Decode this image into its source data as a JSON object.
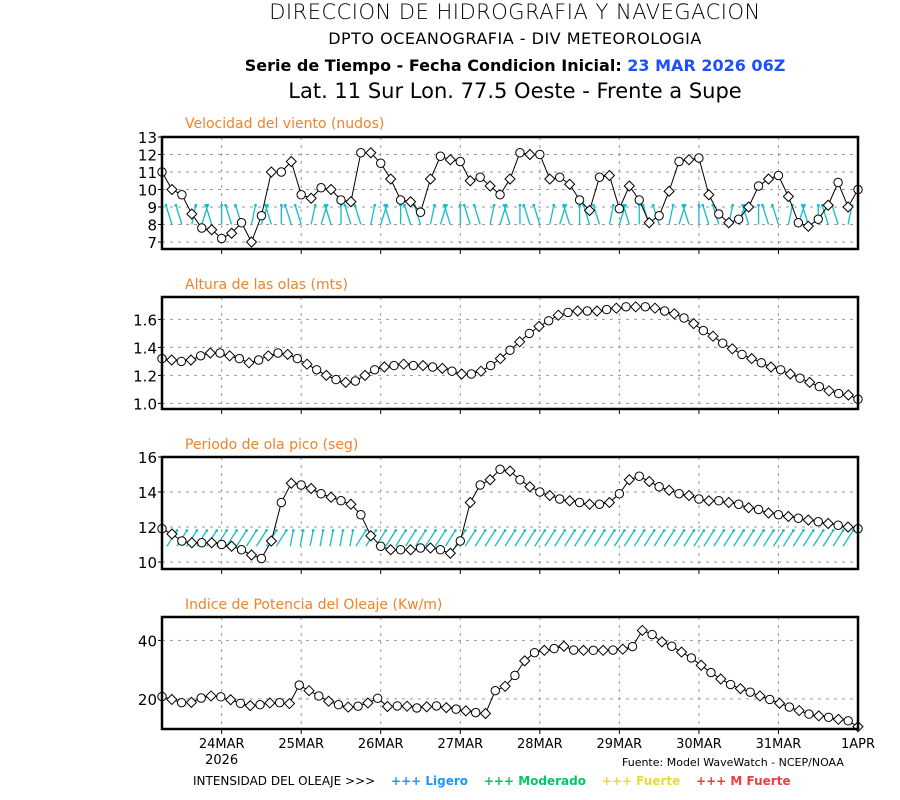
{
  "header": {
    "title": "DIRECCION DE HIDROGRAFIA Y NAVEGACION",
    "subtitle": "DPTO OCEANOGRAFIA - DIV METEOROLOGIA",
    "series_label": "Serie de Tiempo - Fecha Condicion Inicial:",
    "init_date": "23 MAR 2026 06Z",
    "location": "Lat. 11 Sur  Lon. 77.5 Oeste - Frente a Supe"
  },
  "footer": {
    "source": "Fuente: Model WaveWatch - NCEP/NOAA",
    "legend_label": "INTENSIDAD DEL OLEAJE >>>",
    "legend_items": [
      {
        "label": "+++ Ligero",
        "color": "#1e96ff"
      },
      {
        "label": "+++ Moderado",
        "color": "#00c864"
      },
      {
        "label": "+++ Fuerte",
        "color": "#e6dc32"
      },
      {
        "label": "+++ M Fuerte",
        "color": "#f03c3c"
      }
    ]
  },
  "colors": {
    "panel_title": "#f08228",
    "arrow": "#14bec8",
    "line": "#000000",
    "accent_blue": "#1e50ff"
  },
  "chart_data": [
    {
      "type": "line",
      "title": "Velocidad del viento (nudos)",
      "ylim": [
        6.6,
        13
      ],
      "yticks": [
        7,
        8,
        9,
        10,
        11,
        12,
        13
      ],
      "time_step_hours": 3,
      "start": "23 MAR 2026 06Z",
      "xtick_labels": [
        "24MAR",
        "25MAR",
        "26MAR",
        "27MAR",
        "28MAR",
        "29MAR",
        "30MAR",
        "31MAR",
        "1APR"
      ],
      "xtick_sublabel": "2026",
      "grid": true,
      "direction_arrows": true,
      "values": [
        11.0,
        10.0,
        9.7,
        8.6,
        7.8,
        7.7,
        7.2,
        7.5,
        8.1,
        7.0,
        8.5,
        11.0,
        11.0,
        11.6,
        9.7,
        9.5,
        10.1,
        10.0,
        9.4,
        9.3,
        12.1,
        12.1,
        11.5,
        10.6,
        9.4,
        9.3,
        8.7,
        10.6,
        11.9,
        11.7,
        11.6,
        10.5,
        10.7,
        10.2,
        9.7,
        10.6,
        12.1,
        12.0,
        12.0,
        10.6,
        10.7,
        10.3,
        9.4,
        8.8,
        10.7,
        10.8,
        8.9,
        10.2,
        9.4,
        8.1,
        8.5,
        9.9,
        11.6,
        11.7,
        11.8,
        9.7,
        8.6,
        8.1,
        8.3,
        9.0,
        10.2,
        10.6,
        10.8,
        9.6,
        8.1,
        7.9,
        8.3,
        9.1,
        10.4,
        9.0,
        10.0
      ]
    },
    {
      "type": "line",
      "title": "Altura de las olas (mts)",
      "ylim": [
        0.96,
        1.76
      ],
      "yticks": [
        1.0,
        1.2,
        1.4,
        1.6
      ],
      "ytick_labels": [
        "1.0",
        "1.2",
        "1.4",
        "1.6"
      ],
      "time_step_hours": 3,
      "start": "23 MAR 2026 06Z",
      "grid": true,
      "values": [
        1.32,
        1.31,
        1.3,
        1.31,
        1.34,
        1.36,
        1.36,
        1.34,
        1.32,
        1.29,
        1.31,
        1.34,
        1.36,
        1.35,
        1.32,
        1.28,
        1.24,
        1.2,
        1.17,
        1.15,
        1.16,
        1.2,
        1.24,
        1.26,
        1.27,
        1.28,
        1.27,
        1.27,
        1.26,
        1.25,
        1.23,
        1.21,
        1.21,
        1.23,
        1.27,
        1.32,
        1.38,
        1.44,
        1.5,
        1.55,
        1.59,
        1.63,
        1.65,
        1.66,
        1.66,
        1.66,
        1.67,
        1.68,
        1.69,
        1.69,
        1.69,
        1.68,
        1.66,
        1.64,
        1.61,
        1.57,
        1.52,
        1.48,
        1.43,
        1.39,
        1.35,
        1.32,
        1.29,
        1.26,
        1.24,
        1.21,
        1.18,
        1.15,
        1.12,
        1.09,
        1.07,
        1.06,
        1.03
      ]
    },
    {
      "type": "line",
      "title": "Periodo de ola pico (seg)",
      "ylim": [
        9.6,
        16
      ],
      "yticks": [
        10,
        12,
        14,
        16
      ],
      "time_step_hours": 3,
      "start": "23 MAR 2026 06Z",
      "grid": true,
      "direction_arrows": true,
      "values": [
        11.9,
        11.6,
        11.2,
        11.1,
        11.1,
        11.1,
        11.0,
        10.9,
        10.7,
        10.4,
        10.2,
        11.2,
        13.4,
        14.5,
        14.4,
        14.2,
        13.9,
        13.7,
        13.5,
        13.3,
        12.7,
        11.5,
        10.9,
        10.7,
        10.7,
        10.7,
        10.8,
        10.8,
        10.7,
        10.5,
        11.2,
        13.4,
        14.4,
        14.7,
        15.3,
        15.2,
        14.7,
        14.3,
        14.0,
        13.8,
        13.6,
        13.5,
        13.4,
        13.3,
        13.3,
        13.4,
        13.9,
        14.7,
        14.9,
        14.6,
        14.3,
        14.1,
        13.9,
        13.8,
        13.6,
        13.5,
        13.5,
        13.4,
        13.3,
        13.1,
        13.0,
        12.8,
        12.7,
        12.6,
        12.5,
        12.4,
        12.3,
        12.2,
        12.1,
        12.0,
        11.9
      ]
    },
    {
      "type": "line",
      "title": "Indice de Potencia del Oleaje (Kw/m)",
      "ylim": [
        9.7,
        48
      ],
      "yticks": [
        20,
        40
      ],
      "time_step_hours": 3,
      "start": "23 MAR 2026 06Z",
      "grid": true,
      "values": [
        20.8,
        19.8,
        18.7,
        18.8,
        20.3,
        21.0,
        20.7,
        19.7,
        18.5,
        17.7,
        18.0,
        18.6,
        18.7,
        18.4,
        24.7,
        22.8,
        21.0,
        19.2,
        18.0,
        17.2,
        17.5,
        18.6,
        20.2,
        17.4,
        17.6,
        17.5,
        16.9,
        17.3,
        17.6,
        17.0,
        16.5,
        15.9,
        15.3,
        15.0,
        22.8,
        24.3,
        28.0,
        33.0,
        35.8,
        36.6,
        37.2,
        38.0,
        36.7,
        36.6,
        36.6,
        36.6,
        36.7,
        37.0,
        37.9,
        43.4,
        42.0,
        39.5,
        38.0,
        36.0,
        34.0,
        31.5,
        29.0,
        26.8,
        24.9,
        23.5,
        22.3,
        21.0,
        19.8,
        18.5,
        17.2,
        16.0,
        14.8,
        14.2,
        13.7,
        13.0,
        12.5,
        10.5
      ]
    }
  ]
}
